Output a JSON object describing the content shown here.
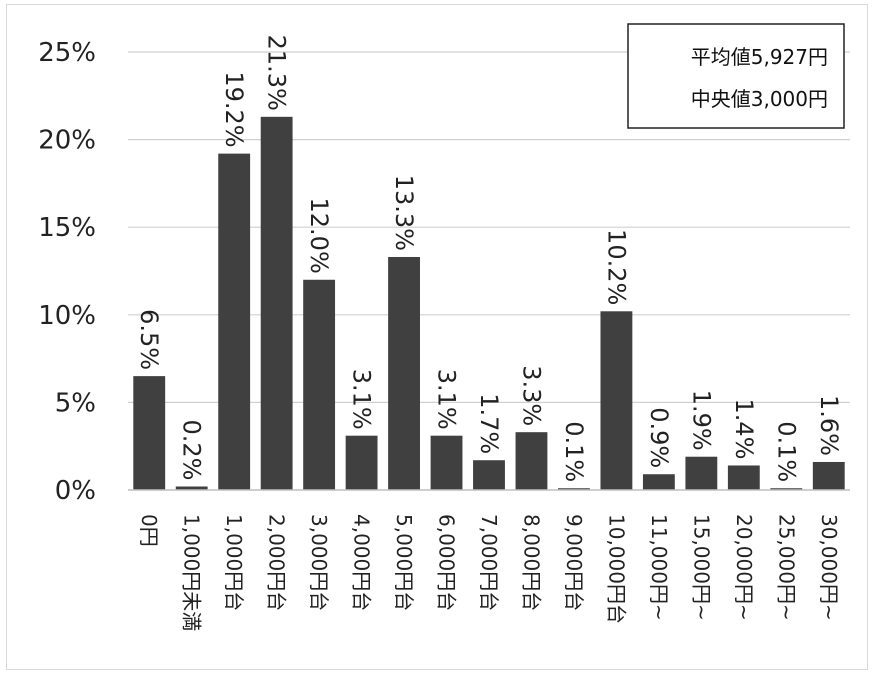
{
  "chart_data": {
    "type": "bar",
    "categories": [
      "0円",
      "1,000円未満",
      "1,000円台",
      "2,000円台",
      "3,000円台",
      "4,000円台",
      "5,000円台",
      "6,000円台",
      "7,000円台",
      "8,000円台",
      "9,000円台",
      "10,000円台",
      "11,000円~",
      "15,000円~",
      "20,000円~",
      "25,000円~",
      "30,000円~"
    ],
    "values": [
      6.5,
      0.2,
      19.2,
      21.3,
      12.0,
      3.1,
      13.3,
      3.1,
      1.7,
      3.3,
      0.1,
      10.2,
      0.9,
      1.9,
      1.4,
      0.1,
      1.6
    ],
    "value_labels": [
      "6.5%",
      "0.2%",
      "19.2%",
      "21.3%",
      "12.0%",
      "3.1%",
      "13.3%",
      "3.1%",
      "1.7%",
      "3.3%",
      "0.1%",
      "10.2%",
      "0.9%",
      "1.9%",
      "1.4%",
      "0.1%",
      "1.6%"
    ],
    "ylim": [
      0,
      25
    ],
    "yticks": [
      0,
      5,
      10,
      15,
      20,
      25
    ],
    "ytick_labels": [
      "0%",
      "5%",
      "10%",
      "15%",
      "20%",
      "25%"
    ],
    "grid": true,
    "bar_color": "#404040",
    "stats_box": {
      "mean": "平均値5,927円",
      "median": "中央値3,000円"
    }
  }
}
